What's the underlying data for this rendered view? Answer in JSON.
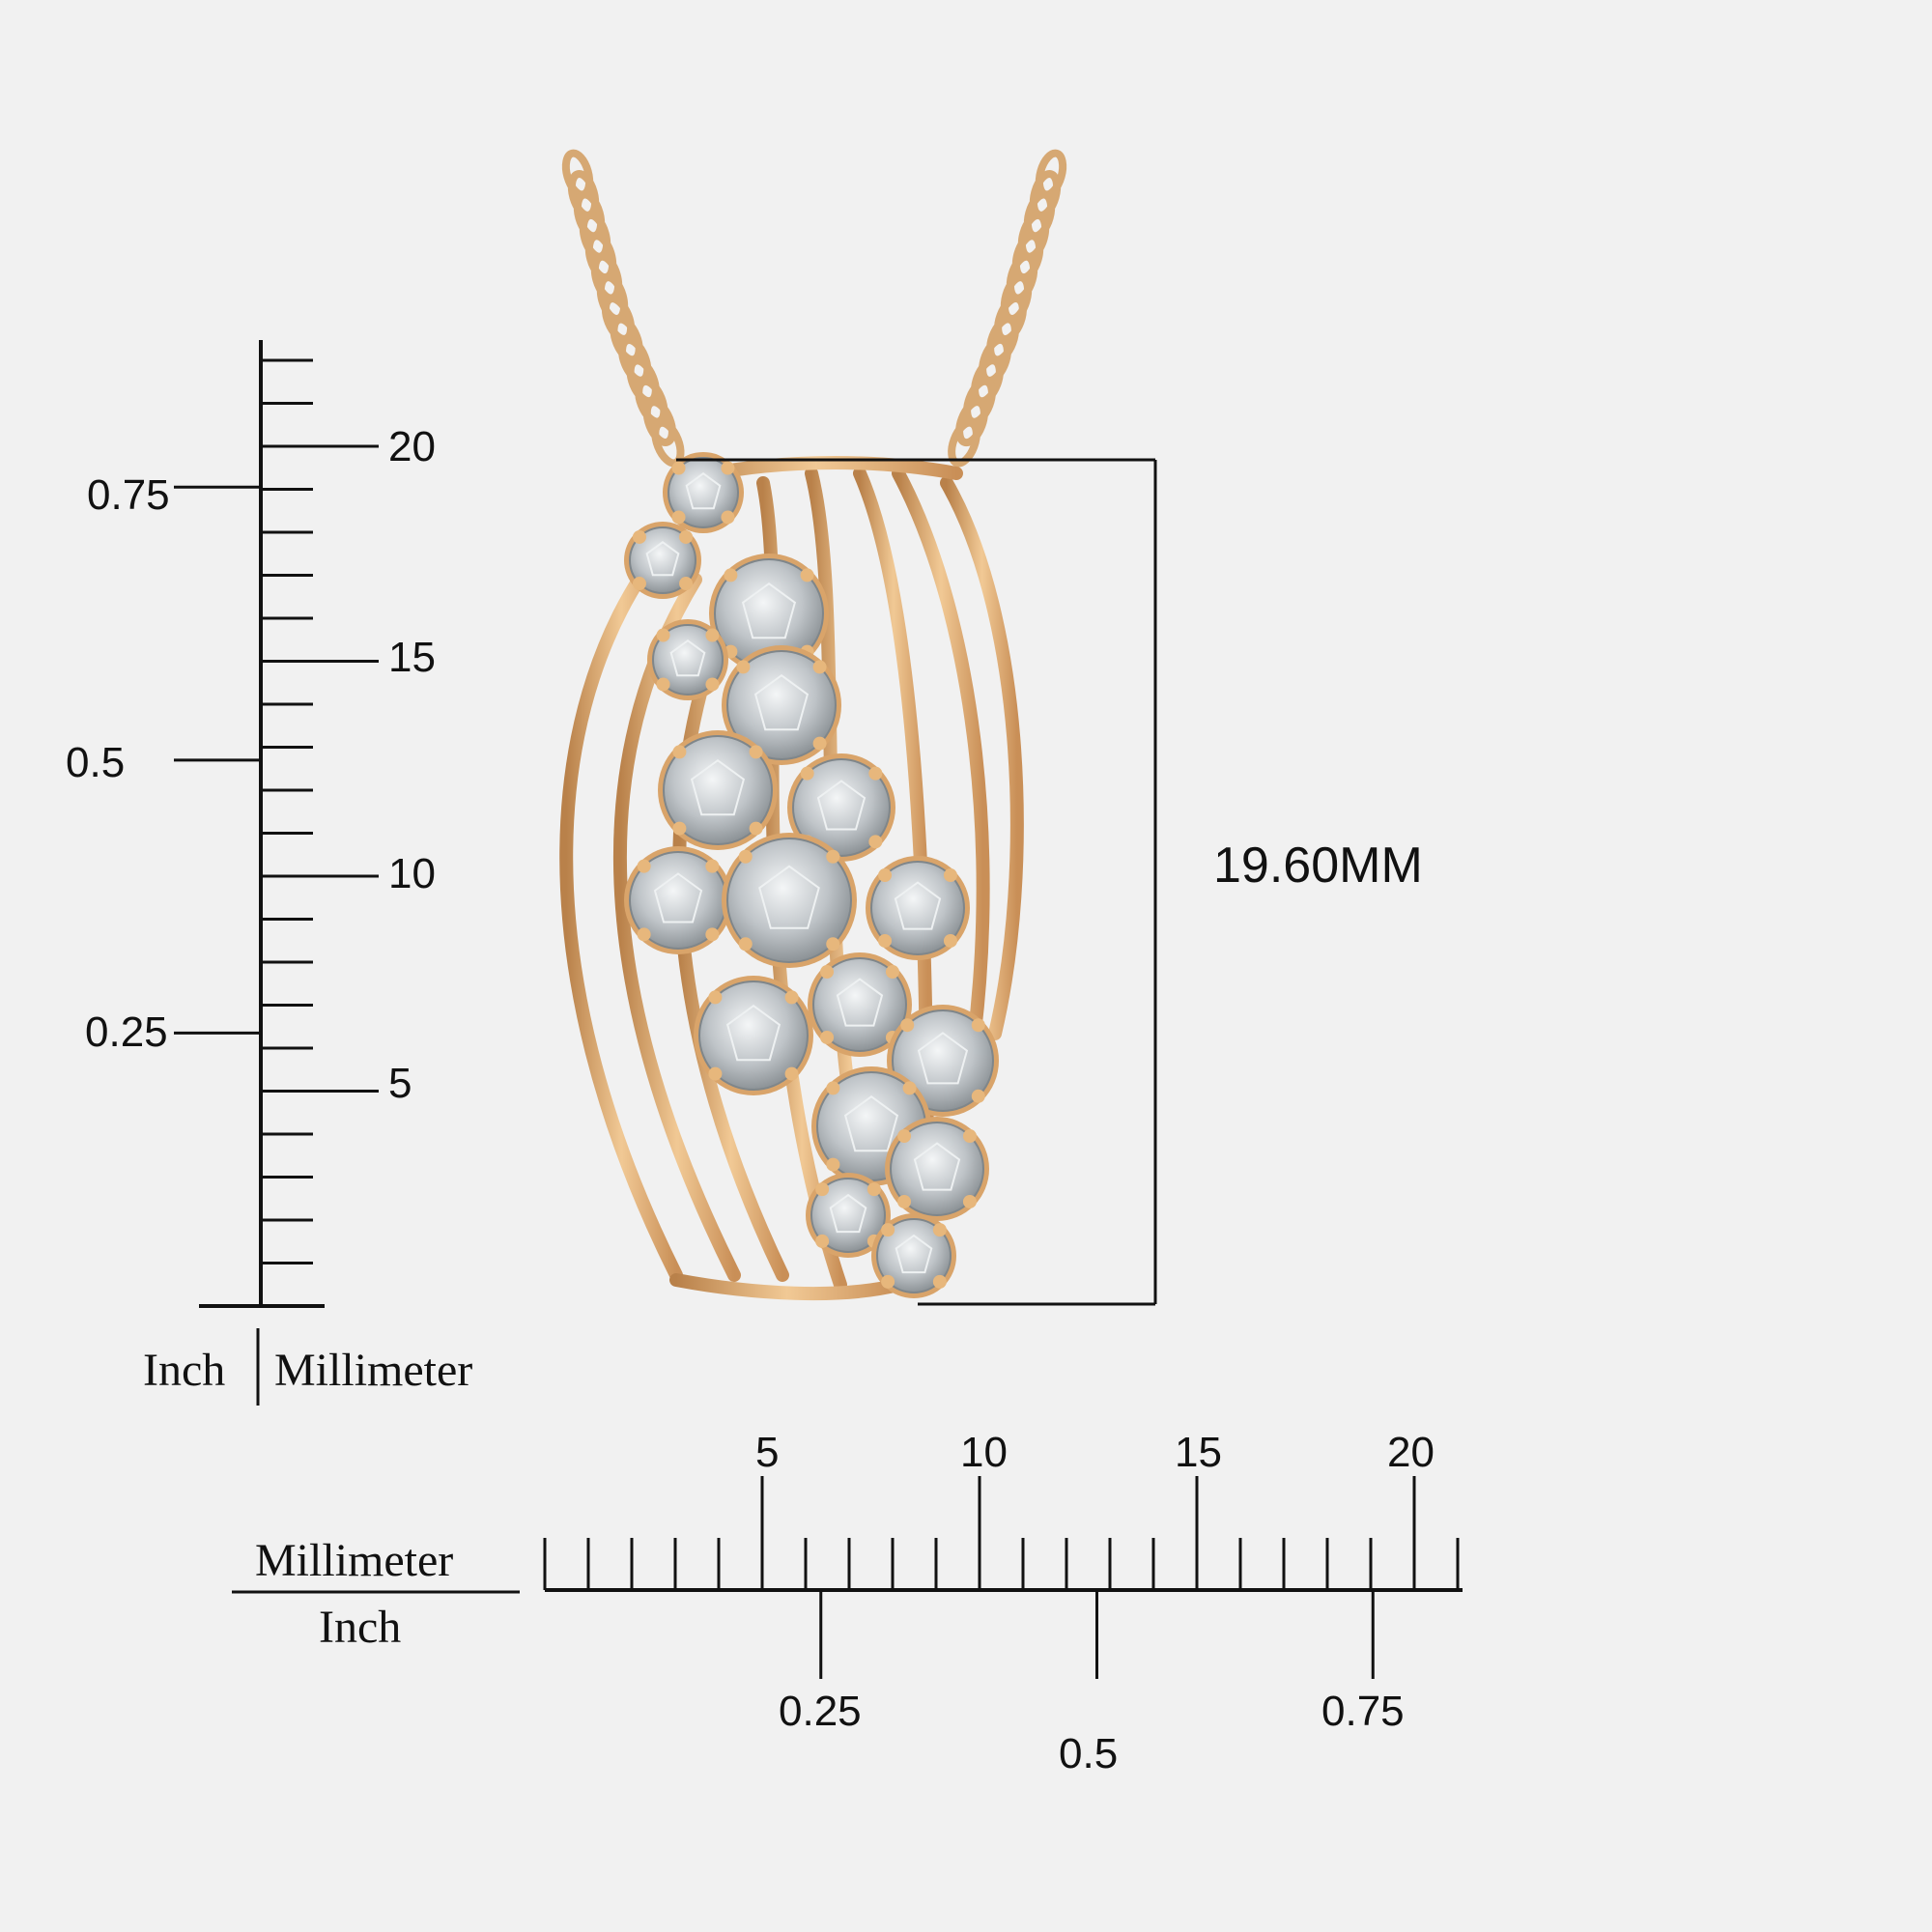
{
  "product": {
    "name": "Diamond cluster pendant",
    "metal_color": "#d9a46a",
    "stone_color": "#cfd3d6",
    "height_label": "19.60MM"
  },
  "vertical_ruler": {
    "unit_left": "Inch",
    "unit_right": "Millimeter",
    "mm_labels": [
      "5",
      "10",
      "15",
      "20"
    ],
    "inch_labels": [
      "0.25",
      "0.5",
      "0.75"
    ]
  },
  "horizontal_ruler": {
    "unit_top": "Millimeter",
    "unit_bottom": "Inch",
    "mm_labels": [
      "5",
      "10",
      "15",
      "20"
    ],
    "inch_labels": [
      "0.25",
      "0.5",
      "0.75"
    ]
  }
}
